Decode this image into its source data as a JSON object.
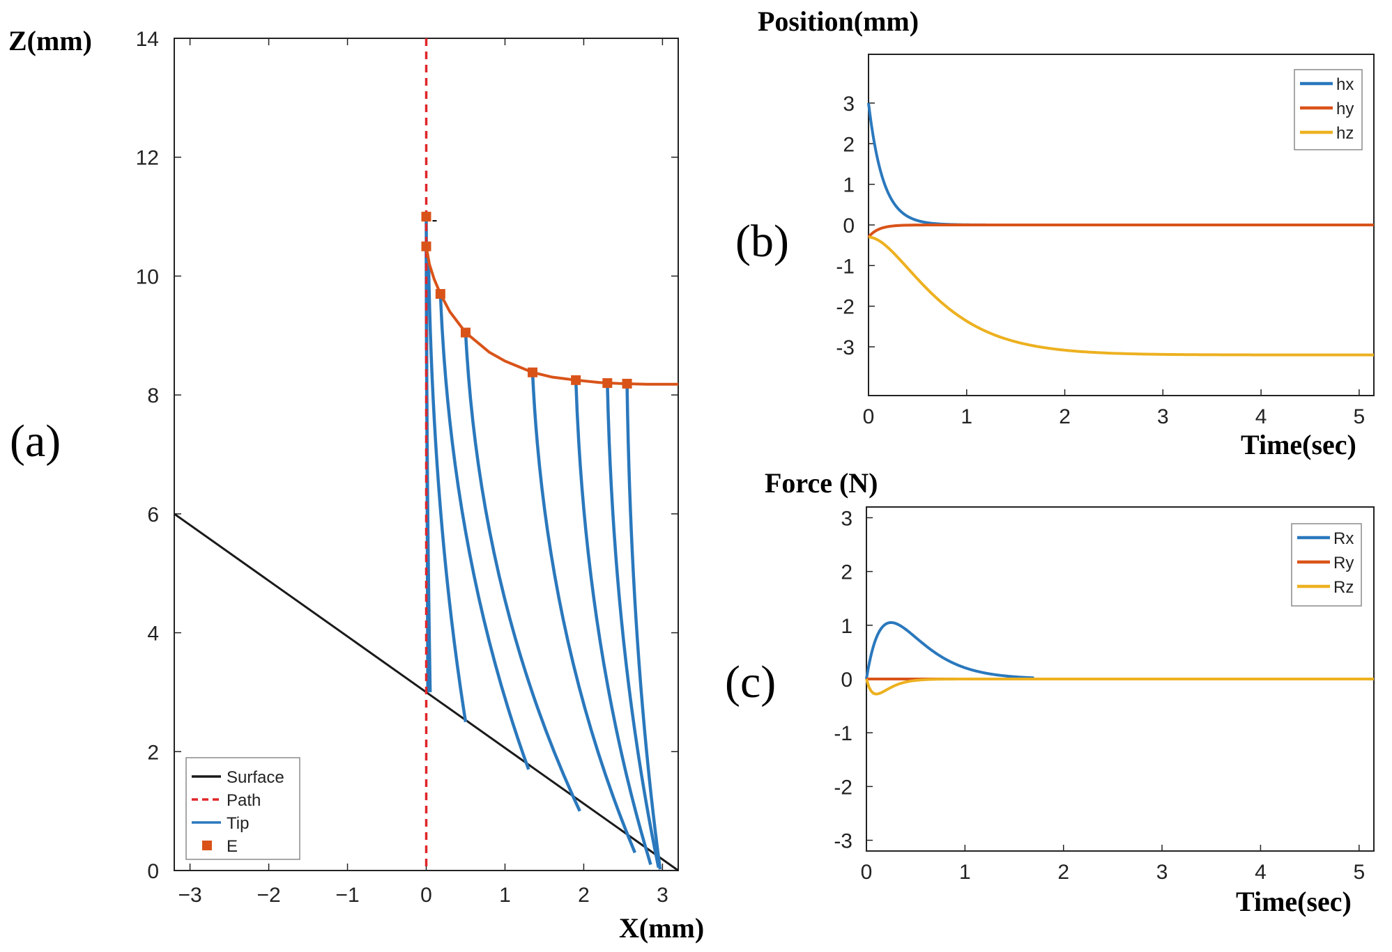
{
  "chart_data": [
    {
      "panel": "(a)",
      "type": "line",
      "xlabel": "X(mm)",
      "ylabel": "Z(mm)",
      "xlim": [
        -3.2,
        3.2
      ],
      "ylim": [
        0,
        14
      ],
      "xticks": [
        -3,
        -2,
        -1,
        0,
        1,
        2,
        3
      ],
      "yticks": [
        0,
        2,
        4,
        6,
        8,
        10,
        12,
        14
      ],
      "legend": {
        "position": "bottom-left",
        "entries": [
          "Surface",
          "Path",
          "Tip",
          "E"
        ]
      },
      "surface": {
        "name": "Surface",
        "color": "#1a1a1a",
        "x": [
          -3.2,
          3.2
        ],
        "y": [
          6.0,
          0.0
        ]
      },
      "path": {
        "name": "Path",
        "color": "#e0262a",
        "x": [
          0,
          0
        ],
        "y": [
          0,
          14
        ]
      },
      "E_curve": {
        "name": "E",
        "color": "#d95319",
        "x": [
          0,
          0.04,
          0.1,
          0.18,
          0.3,
          0.5,
          0.8,
          1.0,
          1.35,
          1.6,
          1.9,
          2.2,
          2.5,
          2.8,
          3.2
        ],
        "y": [
          10.5,
          10.2,
          9.95,
          9.7,
          9.4,
          9.05,
          8.72,
          8.57,
          8.38,
          8.3,
          8.25,
          8.21,
          8.19,
          8.18,
          8.18
        ]
      },
      "E_markers": {
        "name": "E",
        "color": "#d95319",
        "x": [
          0,
          0,
          0.18,
          0.5,
          1.35,
          1.9,
          2.3,
          2.55
        ],
        "y": [
          11.0,
          10.5,
          9.7,
          9.05,
          8.38,
          8.25,
          8.2,
          8.19
        ]
      },
      "tips": {
        "name": "Tip",
        "color": "#2a78bd",
        "series": [
          {
            "start": [
              0,
              11.0
            ],
            "end": [
              0.02,
              3.0
            ]
          },
          {
            "start": [
              0,
              10.5
            ],
            "end": [
              0.05,
              3.0
            ]
          },
          {
            "start": [
              0.03,
              10.2
            ],
            "end": [
              0.5,
              2.5
            ]
          },
          {
            "start": [
              0.18,
              9.7
            ],
            "end": [
              1.3,
              1.7
            ]
          },
          {
            "start": [
              0.5,
              9.05
            ],
            "end": [
              1.95,
              1.0
            ]
          },
          {
            "start": [
              1.35,
              8.38
            ],
            "end": [
              2.65,
              0.3
            ]
          },
          {
            "start": [
              1.9,
              8.25
            ],
            "end": [
              2.85,
              0.1
            ]
          },
          {
            "start": [
              2.3,
              8.2
            ],
            "end": [
              2.95,
              0.05
            ]
          },
          {
            "start": [
              2.55,
              8.19
            ],
            "end": [
              2.97,
              0.02
            ]
          }
        ]
      }
    },
    {
      "panel": "(b)",
      "type": "line",
      "title": "Position(mm)",
      "xlabel": "Time(sec)",
      "xlim": [
        0,
        5.15
      ],
      "ylim": [
        -4.2,
        4.2
      ],
      "xticks": [
        0,
        1,
        2,
        3,
        4,
        5
      ],
      "yticks": [
        -3,
        -2,
        -1,
        0,
        1,
        2,
        3
      ],
      "legend": {
        "position": "top-right",
        "entries": [
          "hx",
          "hy",
          "hz"
        ]
      },
      "series": [
        {
          "name": "hx",
          "color": "#2a78bd",
          "x_max": 1.7,
          "start": 3.0,
          "end": 0.0,
          "tau": 0.15,
          "mode": "decay"
        },
        {
          "name": "hy",
          "color": "#d95319",
          "x_max": 5.15,
          "start": -0.3,
          "end": 0.0,
          "tau": 0.1,
          "mode": "decay"
        },
        {
          "name": "hz",
          "color": "#edb120",
          "x_max": 5.15,
          "start": -0.3,
          "end": -3.2,
          "tau": 0.4,
          "mode": "sigmoid"
        }
      ]
    },
    {
      "panel": "(c)",
      "type": "line",
      "title": "Force (N)",
      "xlabel": "Time(sec)",
      "xlim": [
        0,
        5.15
      ],
      "ylim": [
        -3.2,
        3.2
      ],
      "xticks": [
        0,
        1,
        2,
        3,
        4,
        5
      ],
      "yticks": [
        -3,
        -2,
        -1,
        0,
        1,
        2,
        3
      ],
      "legend": {
        "position": "top-right",
        "entries": [
          "Rx",
          "Ry",
          "Rz"
        ]
      },
      "series": [
        {
          "name": "Rx",
          "color": "#2a78bd",
          "x_max": 1.7,
          "peak": 1.05,
          "peak_t": 0.25,
          "mode": "pulse"
        },
        {
          "name": "Ry",
          "color": "#d95319",
          "x_max": 5.15,
          "value": 0.0,
          "mode": "flat"
        },
        {
          "name": "Rz",
          "color": "#edb120",
          "x_max": 5.15,
          "peak": -0.28,
          "peak_t": 0.1,
          "mode": "pulse"
        }
      ]
    }
  ],
  "labels": {
    "panel_a": "(a)",
    "panel_b": "(b)",
    "panel_c": "(c)",
    "a_xlabel": "X(mm)",
    "a_ylabel": "Z(mm)",
    "b_title": "Position(mm)",
    "b_xlabel": "Time(sec)",
    "c_title": "Force (N)",
    "c_xlabel": "Time(sec)"
  }
}
